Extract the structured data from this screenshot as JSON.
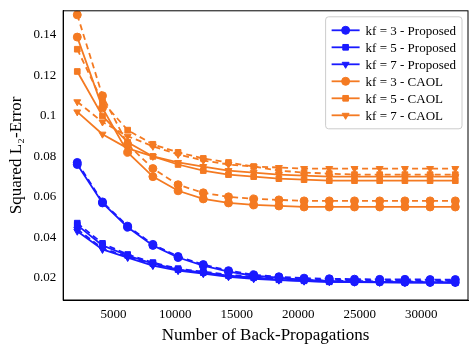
{
  "chart_data": {
    "type": "line",
    "x_label": "Number of Back-Propagations",
    "y_label": "Squared L₂-Error",
    "x": [
      2048,
      4096,
      6144,
      8192,
      10240,
      12288,
      14336,
      16384,
      18432,
      20480,
      22528,
      24576,
      26624,
      28672,
      30720,
      32768
    ],
    "xlim": [
      900,
      33800
    ],
    "xticks": [
      5000,
      10000,
      15000,
      20000,
      25000,
      30000
    ],
    "ylim": [
      0.009,
      0.152
    ],
    "yticks": [
      0.02,
      0.04,
      0.06,
      0.08,
      0.1,
      0.12,
      0.14
    ],
    "grid": false,
    "legend": "upper right",
    "series": [
      {
        "name": "kf = 3 - Proposed",
        "color": "#1a1aff",
        "marker": "circle",
        "line_style": "solid",
        "values": [
          0.076,
          0.057,
          0.045,
          0.036,
          0.03,
          0.026,
          0.023,
          0.021,
          0.02,
          0.019,
          0.0185,
          0.018,
          0.018,
          0.0178,
          0.0177,
          0.0177
        ]
      },
      {
        "color": "#1a1aff",
        "marker": "circle",
        "line_style": "dashed",
        "values": [
          0.077,
          0.0575,
          0.0455,
          0.0365,
          0.0305,
          0.0265,
          0.0235,
          0.0215,
          0.0205,
          0.0198,
          0.0195,
          0.0193,
          0.0192,
          0.0192,
          0.0191,
          0.0191
        ]
      },
      {
        "name": "kf = 5 - Proposed",
        "color": "#1a1aff",
        "marker": "square",
        "line_style": "solid",
        "values": [
          0.046,
          0.036,
          0.031,
          0.027,
          0.024,
          0.0225,
          0.021,
          0.02,
          0.019,
          0.0185,
          0.018,
          0.018,
          0.0178,
          0.0177,
          0.0177,
          0.0176
        ]
      },
      {
        "color": "#1a1aff",
        "marker": "square",
        "line_style": "dashed",
        "values": [
          0.047,
          0.037,
          0.0315,
          0.0275,
          0.0245,
          0.023,
          0.0215,
          0.0205,
          0.0197,
          0.0192,
          0.019,
          0.0188,
          0.0187,
          0.0186,
          0.0186,
          0.0186
        ]
      },
      {
        "name": "kf = 7 - Proposed",
        "color": "#1a1aff",
        "marker": "triangle_down",
        "line_style": "solid",
        "values": [
          0.043,
          0.034,
          0.03,
          0.026,
          0.0235,
          0.022,
          0.0205,
          0.0195,
          0.0188,
          0.0183,
          0.018,
          0.0178,
          0.0177,
          0.0176,
          0.0176,
          0.0175
        ]
      },
      {
        "color": "#1a1aff",
        "marker": "triangle_down",
        "line_style": "dashed",
        "values": [
          0.044,
          0.0345,
          0.0305,
          0.0265,
          0.024,
          0.0225,
          0.021,
          0.02,
          0.0193,
          0.0188,
          0.0185,
          0.0183,
          0.0182,
          0.0181,
          0.0181,
          0.018
        ]
      },
      {
        "name": "kf = 3 - CAOL",
        "color": "#f47a22",
        "marker": "circle",
        "line_style": "solid",
        "values": [
          0.139,
          0.104,
          0.082,
          0.07,
          0.063,
          0.059,
          0.057,
          0.056,
          0.0555,
          0.055,
          0.055,
          0.055,
          0.055,
          0.055,
          0.055,
          0.055
        ]
      },
      {
        "color": "#f47a22",
        "marker": "circle",
        "line_style": "dashed",
        "values": [
          0.15,
          0.11,
          0.086,
          0.074,
          0.066,
          0.062,
          0.06,
          0.059,
          0.0585,
          0.058,
          0.058,
          0.058,
          0.058,
          0.058,
          0.058,
          0.058
        ]
      },
      {
        "name": "kf = 5 - CAOL",
        "color": "#f47a22",
        "marker": "square",
        "line_style": "solid",
        "values": [
          0.122,
          0.1,
          0.087,
          0.08,
          0.076,
          0.073,
          0.071,
          0.07,
          0.069,
          0.0685,
          0.068,
          0.068,
          0.068,
          0.068,
          0.068,
          0.068
        ]
      },
      {
        "color": "#f47a22",
        "marker": "square",
        "line_style": "dashed",
        "values": [
          0.133,
          0.107,
          0.093,
          0.086,
          0.082,
          0.079,
          0.077,
          0.075,
          0.073,
          0.072,
          0.0715,
          0.071,
          0.071,
          0.071,
          0.071,
          0.071
        ]
      },
      {
        "name": "kf = 7 - CAOL",
        "color": "#f47a22",
        "marker": "triangle_down",
        "line_style": "solid",
        "values": [
          0.102,
          0.091,
          0.084,
          0.08,
          0.077,
          0.075,
          0.073,
          0.072,
          0.071,
          0.0705,
          0.07,
          0.07,
          0.07,
          0.07,
          0.07,
          0.07
        ]
      },
      {
        "color": "#f47a22",
        "marker": "triangle_down",
        "line_style": "dashed",
        "values": [
          0.107,
          0.097,
          0.09,
          0.085,
          0.081,
          0.078,
          0.076,
          0.075,
          0.0745,
          0.074,
          0.074,
          0.074,
          0.074,
          0.074,
          0.074,
          0.074
        ]
      }
    ]
  }
}
